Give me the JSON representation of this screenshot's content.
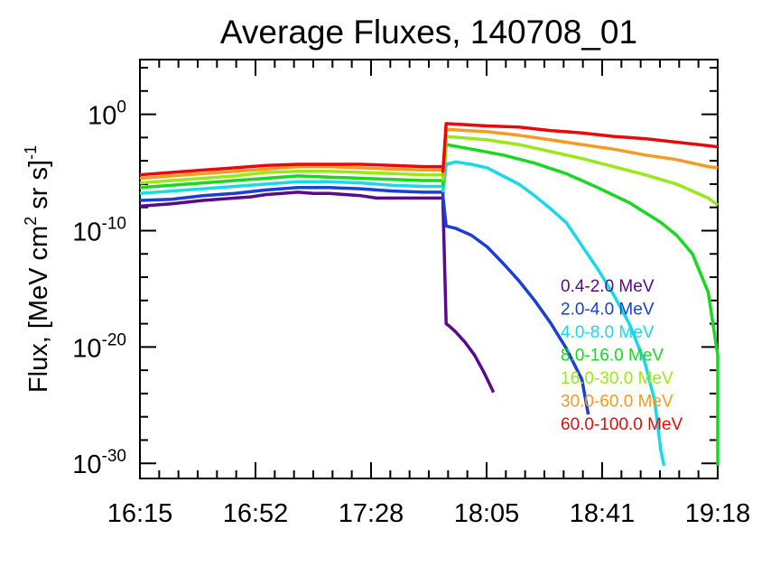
{
  "chart_data": {
    "type": "line",
    "title": "Average Fluxes, 140708_01",
    "ylabel": {
      "main": "Flux, [MeV cm",
      "sup1": "2",
      "middle": " sr s]",
      "sup2": "-1"
    },
    "xlabel": "",
    "x_tick_labels": [
      "16:15",
      "16:52",
      "17:28",
      "18:05",
      "18:41",
      "19:18"
    ],
    "y_ticks": [
      {
        "base": "10",
        "exp": "0"
      },
      {
        "base": "10",
        "exp": "-10"
      },
      {
        "base": "10",
        "exp": "-20"
      },
      {
        "base": "10",
        "exp": "-30"
      }
    ],
    "x_range_minutes_after_1615": [
      0,
      183
    ],
    "y_scale": "log",
    "y_range_log10": [
      -31.3,
      4.7
    ],
    "grid": false,
    "legend_position": "right",
    "series": [
      {
        "name": "0.4-2.0 MeV",
        "color": "#5a0a8c",
        "points": [
          [
            0,
            -7.9
          ],
          [
            10,
            -7.7
          ],
          [
            20,
            -7.4
          ],
          [
            30,
            -7.2
          ],
          [
            35,
            -7.1
          ],
          [
            40,
            -6.9
          ],
          [
            45,
            -6.8
          ],
          [
            50,
            -6.7
          ],
          [
            55,
            -6.8
          ],
          [
            60,
            -6.8
          ],
          [
            65,
            -6.9
          ],
          [
            70,
            -7.0
          ],
          [
            75,
            -7.2
          ],
          [
            80,
            -7.2
          ],
          [
            85,
            -7.2
          ],
          [
            90,
            -7.2
          ],
          [
            95,
            -7.2
          ],
          [
            96,
            -7.2
          ],
          [
            96,
            -7.7
          ],
          [
            97,
            -18.0
          ],
          [
            98,
            -18.2
          ],
          [
            100,
            -18.7
          ],
          [
            103,
            -19.6
          ],
          [
            106,
            -20.7
          ],
          [
            109,
            -22.2
          ],
          [
            112,
            -23.9
          ]
        ]
      },
      {
        "name": "2.0-4.0 MeV",
        "color": "#1a3ed6",
        "points": [
          [
            0,
            -7.4
          ],
          [
            10,
            -7.3
          ],
          [
            20,
            -7.0
          ],
          [
            30,
            -6.8
          ],
          [
            40,
            -6.5
          ],
          [
            50,
            -6.3
          ],
          [
            60,
            -6.3
          ],
          [
            70,
            -6.4
          ],
          [
            80,
            -6.6
          ],
          [
            90,
            -6.7
          ],
          [
            95,
            -6.7
          ],
          [
            96,
            -6.7
          ],
          [
            96,
            -7.1
          ],
          [
            97,
            -9.6
          ],
          [
            100,
            -9.8
          ],
          [
            105,
            -10.4
          ],
          [
            110,
            -11.4
          ],
          [
            115,
            -12.8
          ],
          [
            120,
            -14.3
          ],
          [
            125,
            -16.0
          ],
          [
            130,
            -17.9
          ],
          [
            135,
            -20.1
          ],
          [
            140,
            -22.8
          ],
          [
            142,
            -25.8
          ]
        ]
      },
      {
        "name": "4.0-8.0 MeV",
        "color": "#1ad8e8",
        "points": [
          [
            0,
            -6.8
          ],
          [
            10,
            -6.6
          ],
          [
            20,
            -6.4
          ],
          [
            30,
            -6.2
          ],
          [
            40,
            -6.0
          ],
          [
            50,
            -5.8
          ],
          [
            60,
            -5.8
          ],
          [
            70,
            -5.9
          ],
          [
            80,
            -6.1
          ],
          [
            90,
            -6.2
          ],
          [
            95,
            -6.2
          ],
          [
            96,
            -6.2
          ],
          [
            96,
            -6.6
          ],
          [
            97,
            -4.3
          ],
          [
            100,
            -4.1
          ],
          [
            105,
            -4.3
          ],
          [
            110,
            -4.6
          ],
          [
            115,
            -5.3
          ],
          [
            120,
            -6.0
          ],
          [
            125,
            -7.0
          ],
          [
            130,
            -8.1
          ],
          [
            135,
            -9.3
          ],
          [
            140,
            -11.3
          ],
          [
            145,
            -13.3
          ],
          [
            150,
            -15.5
          ],
          [
            155,
            -18.0
          ],
          [
            160,
            -21.4
          ],
          [
            163,
            -24.6
          ],
          [
            165,
            -28.9
          ],
          [
            166,
            -30.2
          ]
        ]
      },
      {
        "name": "8.0-16.0 MeV",
        "color": "#1ad822",
        "points": [
          [
            0,
            -6.3
          ],
          [
            10,
            -6.1
          ],
          [
            20,
            -5.9
          ],
          [
            30,
            -5.7
          ],
          [
            40,
            -5.5
          ],
          [
            50,
            -5.3
          ],
          [
            60,
            -5.4
          ],
          [
            70,
            -5.5
          ],
          [
            80,
            -5.6
          ],
          [
            90,
            -5.7
          ],
          [
            95,
            -5.7
          ],
          [
            96,
            -5.7
          ],
          [
            96,
            -6.1
          ],
          [
            97,
            -2.6
          ],
          [
            105,
            -3.0
          ],
          [
            115,
            -3.5
          ],
          [
            125,
            -4.2
          ],
          [
            135,
            -5.1
          ],
          [
            140,
            -5.7
          ],
          [
            145,
            -6.3
          ],
          [
            155,
            -7.6
          ],
          [
            165,
            -9.3
          ],
          [
            170,
            -10.4
          ],
          [
            175,
            -12.0
          ],
          [
            180,
            -15.3
          ],
          [
            183,
            -20.7
          ],
          [
            183,
            -30.2
          ]
        ]
      },
      {
        "name": "16.0-30.0 MeV",
        "color": "#9be81a",
        "points": [
          [
            0,
            -5.9
          ],
          [
            10,
            -5.7
          ],
          [
            20,
            -5.5
          ],
          [
            30,
            -5.3
          ],
          [
            40,
            -5.0
          ],
          [
            50,
            -4.9
          ],
          [
            60,
            -4.9
          ],
          [
            70,
            -5.0
          ],
          [
            80,
            -5.1
          ],
          [
            90,
            -5.2
          ],
          [
            95,
            -5.2
          ],
          [
            96,
            -5.2
          ],
          [
            96,
            -5.6
          ],
          [
            97,
            -1.9
          ],
          [
            110,
            -2.2
          ],
          [
            120,
            -2.6
          ],
          [
            130,
            -3.2
          ],
          [
            140,
            -3.8
          ],
          [
            150,
            -4.5
          ],
          [
            160,
            -5.2
          ],
          [
            170,
            -6.0
          ],
          [
            180,
            -7.2
          ],
          [
            183,
            -7.8
          ]
        ]
      },
      {
        "name": "30.0-60.0 MeV",
        "color": "#f59a22",
        "points": [
          [
            0,
            -5.5
          ],
          [
            10,
            -5.3
          ],
          [
            20,
            -5.1
          ],
          [
            30,
            -4.9
          ],
          [
            40,
            -4.7
          ],
          [
            50,
            -4.5
          ],
          [
            60,
            -4.5
          ],
          [
            70,
            -4.6
          ],
          [
            80,
            -4.7
          ],
          [
            90,
            -4.8
          ],
          [
            95,
            -4.8
          ],
          [
            96,
            -4.8
          ],
          [
            96,
            -5.2
          ],
          [
            97,
            -1.3
          ],
          [
            110,
            -1.5
          ],
          [
            120,
            -1.8
          ],
          [
            130,
            -2.2
          ],
          [
            140,
            -2.6
          ],
          [
            150,
            -3.0
          ],
          [
            160,
            -3.5
          ],
          [
            170,
            -3.9
          ],
          [
            180,
            -4.5
          ],
          [
            183,
            -4.6
          ]
        ]
      },
      {
        "name": "60.0-100.0 MeV",
        "color": "#e80a0a",
        "points": [
          [
            0,
            -5.2
          ],
          [
            10,
            -5.0
          ],
          [
            20,
            -4.8
          ],
          [
            30,
            -4.6
          ],
          [
            40,
            -4.4
          ],
          [
            50,
            -4.3
          ],
          [
            60,
            -4.3
          ],
          [
            70,
            -4.3
          ],
          [
            80,
            -4.4
          ],
          [
            90,
            -4.5
          ],
          [
            95,
            -4.5
          ],
          [
            96,
            -4.5
          ],
          [
            96,
            -4.9
          ],
          [
            97,
            -0.8
          ],
          [
            110,
            -1.0
          ],
          [
            120,
            -1.1
          ],
          [
            130,
            -1.4
          ],
          [
            140,
            -1.6
          ],
          [
            150,
            -1.9
          ],
          [
            160,
            -2.1
          ],
          [
            170,
            -2.4
          ],
          [
            180,
            -2.7
          ],
          [
            183,
            -2.8
          ]
        ]
      }
    ]
  }
}
